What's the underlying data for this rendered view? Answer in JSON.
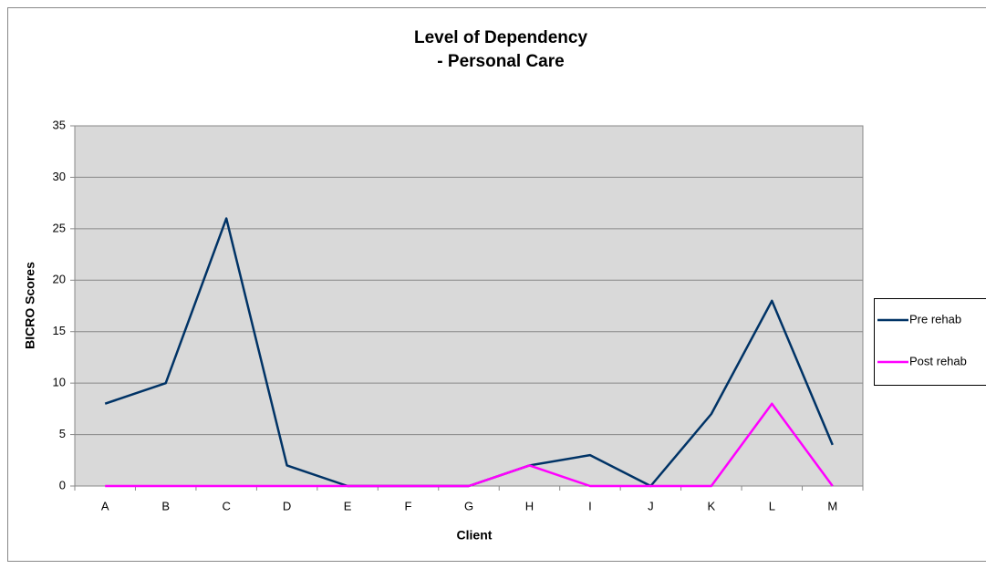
{
  "chart_data": {
    "type": "line",
    "title": "Level of Dependency",
    "subtitle": "- Personal Care",
    "x_label": "Client",
    "y_label": "BICRO Scores",
    "categories": [
      "A",
      "B",
      "C",
      "D",
      "E",
      "F",
      "G",
      "H",
      "I",
      "J",
      "K",
      "L",
      "M"
    ],
    "series": [
      {
        "name": "Pre rehab",
        "color": "#003366",
        "values": [
          8,
          10,
          26,
          2,
          0,
          0,
          0,
          2,
          3,
          0,
          7,
          18,
          4
        ]
      },
      {
        "name": "Post rehab",
        "color": "#ff00ff",
        "values": [
          0,
          0,
          0,
          0,
          0,
          0,
          0,
          2,
          0,
          0,
          0,
          8,
          0
        ]
      }
    ],
    "ylim": [
      0,
      35
    ],
    "yticks": [
      0,
      5,
      10,
      15,
      20,
      25,
      30,
      35
    ],
    "grid": true,
    "legend": "right"
  }
}
